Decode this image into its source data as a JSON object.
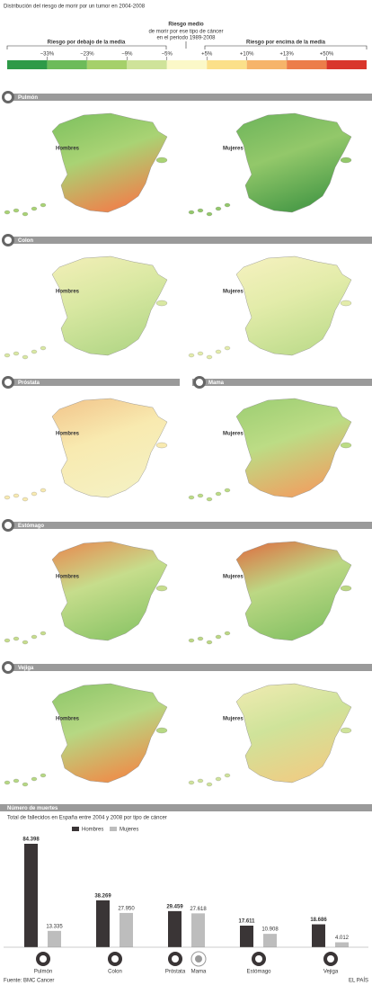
{
  "header": {
    "title": "Distribución del riesgo de morir por un tumor en 2004-2008"
  },
  "legend": {
    "center_title": "Riesgo medio",
    "center_lines": [
      "de morir por ese tipo de cáncer",
      "en el periodo 1989-2008"
    ],
    "left_label": "Riesgo por debajo de la media",
    "right_label": "Riesgo por encima de la media",
    "ticks": [
      "−33%",
      "−23%",
      "−9%",
      "−5%",
      "+5%",
      "+10%",
      "+13%",
      "+50%"
    ],
    "colors": [
      "#2e9a48",
      "#6dbb5a",
      "#a5d06a",
      "#cfe39a",
      "#fbf8c8",
      "#fbe08a",
      "#f6b46a",
      "#ec7d4a",
      "#d9362c"
    ]
  },
  "rows": [
    {
      "title": "Pulmón",
      "maps": [
        "Hombres",
        "Mujeres"
      ]
    },
    {
      "title": "Colon",
      "maps": [
        "Hombres",
        "Mujeres"
      ]
    },
    {
      "title": "Próstata",
      "title_right": "Mama",
      "maps": [
        "Hombres",
        "Mujeres"
      ]
    },
    {
      "title": "Estómago",
      "maps": [
        "Hombres",
        "Mujeres"
      ]
    },
    {
      "title": "Vejiga",
      "maps": [
        "Hombres",
        "Mujeres"
      ]
    }
  ],
  "chart_data": {
    "type": "bar",
    "title": "Número de muertes",
    "subtitle": "Total de fallecidos en España entre 2004 y 2008 por tipo de cáncer",
    "categories": [
      "Pulmón",
      "Colon",
      "Próstata",
      "Mama",
      "Estómago",
      "Vejiga"
    ],
    "series": [
      {
        "name": "Hombres",
        "color": "#3a3536",
        "values": [
          84398,
          38269,
          29459,
          null,
          17611,
          18686
        ],
        "value_labels": [
          "84.398",
          "38.269",
          "29.459",
          null,
          "17.611",
          "18.686"
        ]
      },
      {
        "name": "Mujeres",
        "color": "#bdbdbd",
        "values": [
          13335,
          27950,
          null,
          27618,
          10908,
          4012
        ],
        "value_labels": [
          "13.335",
          "27.950",
          null,
          "27.618",
          "10.908",
          "4.012"
        ]
      }
    ]
  },
  "footer": {
    "source": "Fuente: BMC Cancer",
    "brand": "EL PAÍS"
  }
}
